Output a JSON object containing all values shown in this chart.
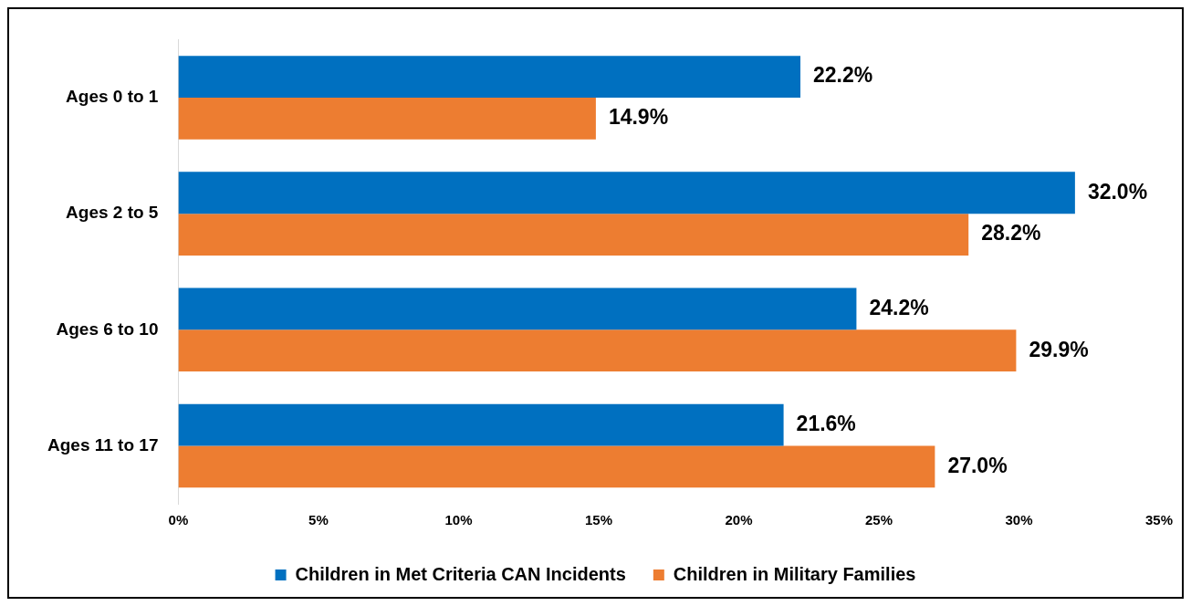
{
  "chart_data": {
    "type": "bar",
    "orientation": "horizontal",
    "categories": [
      "Ages 0 to 1",
      "Ages 2 to 5",
      "Ages 6 to 10",
      "Ages 11 to 17"
    ],
    "series": [
      {
        "name": "Children in Met Criteria CAN Incidents",
        "color": "#0070c0",
        "values": [
          22.2,
          32.0,
          24.2,
          21.6
        ],
        "value_labels": [
          "22.2%",
          "32.0%",
          "24.2%",
          "21.6%"
        ]
      },
      {
        "name": "Children in Military Families",
        "color": "#ed7d31",
        "values": [
          14.9,
          28.2,
          29.9,
          27.0
        ],
        "value_labels": [
          "14.9%",
          "28.2%",
          "29.9%",
          "27.0%"
        ]
      }
    ],
    "xlim": [
      0,
      35
    ],
    "xticks": [
      {
        "value": 0,
        "label": "0%"
      },
      {
        "value": 5,
        "label": "5%"
      },
      {
        "value": 10,
        "label": "10%"
      },
      {
        "value": 15,
        "label": "15%"
      },
      {
        "value": 20,
        "label": "20%"
      },
      {
        "value": 25,
        "label": "25%"
      },
      {
        "value": 30,
        "label": "30%"
      },
      {
        "value": 35,
        "label": "35%"
      }
    ],
    "grid": false,
    "legend": "bottom"
  }
}
